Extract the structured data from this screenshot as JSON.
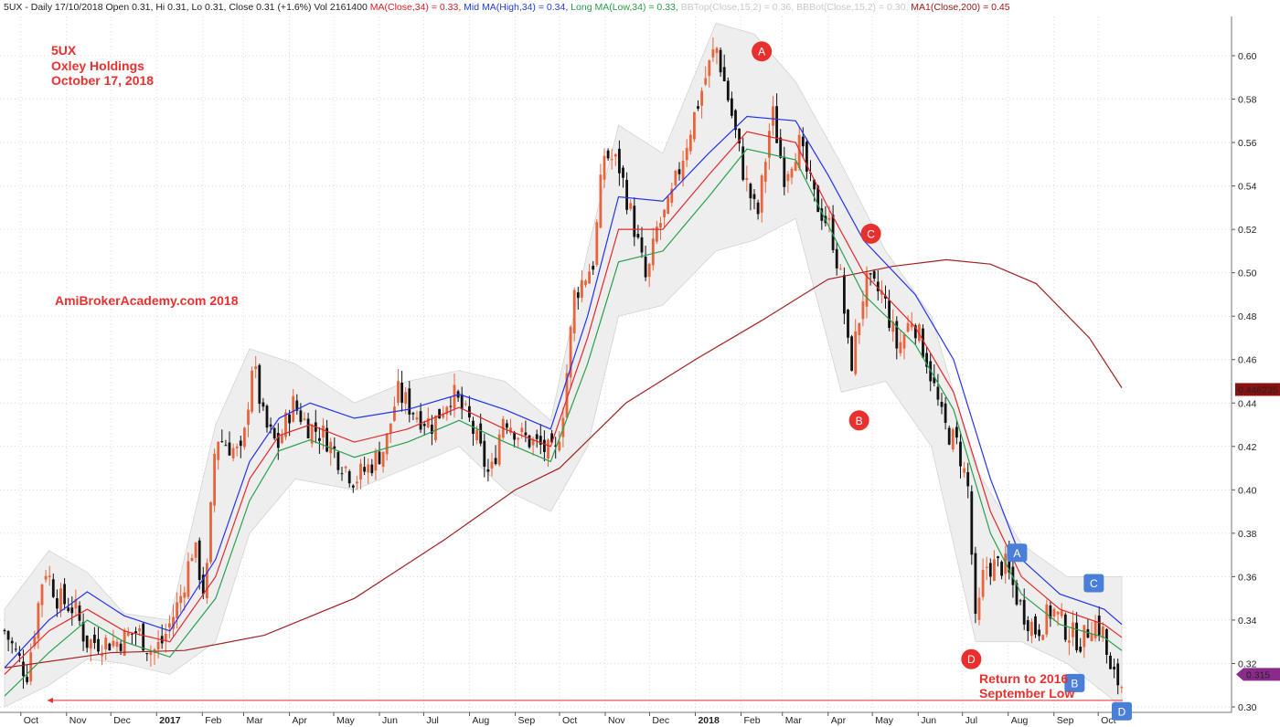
{
  "header": {
    "parts": [
      {
        "text": "5UX - Daily 17/10/2018 Open 0.31, Hi 0.31, Lo 0.31, Close 0.31 (+1.6%) Vol 2161400 ",
        "color": "#222222"
      },
      {
        "text": "MA(Close,34) = 0.33, ",
        "color": "#d42020"
      },
      {
        "text": "Mid MA(High,34) = 0.34, ",
        "color": "#1f3fd0"
      },
      {
        "text": "Long MA(Low,34) = 0.33, ",
        "color": "#2a9a4a"
      },
      {
        "text": "BBTop(Close,15,2) = 0.36, ",
        "color": "#c8c8c8"
      },
      {
        "text": "BBBot(Close,15,2) = 0.30, ",
        "color": "#c8c8c8"
      },
      {
        "text": "MA1(Close,200) = 0.45",
        "color": "#a01818"
      }
    ]
  },
  "annotations": {
    "title_lines": [
      "5UX",
      "Oxley Holdings",
      "October 17, 2018"
    ],
    "watermark": "AmiBrokerAcademy.com  2018",
    "return_lines": [
      "Return to 2016",
      "September Low"
    ]
  },
  "colors": {
    "up_candle": "#e8643c",
    "down_candle": "#111111",
    "ma_close": "#e02a2a",
    "mid_ma_high": "#2233ee",
    "long_ma_low": "#2aa04c",
    "ma200": "#a32020",
    "bb_fill": "#ededed",
    "grid": "#d9d9d9",
    "red_marker": "#e8312f",
    "blue_marker": "#4a7fd8"
  },
  "chart_data": {
    "type": "candlestick",
    "y_range": [
      0.295,
      0.625
    ],
    "y_ticks": [
      "0.30",
      "0.32",
      "0.34",
      "0.36",
      "0.38",
      "0.40",
      "0.42",
      "0.44",
      "0.46",
      "0.48",
      "0.50",
      "0.52",
      "0.54",
      "0.56",
      "0.58",
      "0.60"
    ],
    "x_labels": [
      "Oct",
      "Nov",
      "Dec",
      "2017",
      "Feb",
      "Mar",
      "Apr",
      "May",
      "Jun",
      "Jul",
      "Aug",
      "Sep",
      "Oct",
      "Nov",
      "Dec",
      "2018",
      "Feb",
      "Mar",
      "Apr",
      "May",
      "Jun",
      "Jul",
      "Aug",
      "Sep",
      "Oct"
    ],
    "x_label_bold": [
      "2017",
      "2018"
    ],
    "close_path": [
      [
        "2016-09-20",
        0.335
      ],
      [
        "2016-10-05",
        0.315
      ],
      [
        "2016-10-10",
        0.335
      ],
      [
        "2016-10-17",
        0.365
      ],
      [
        "2016-10-26",
        0.35
      ],
      [
        "2016-11-07",
        0.345
      ],
      [
        "2016-11-14",
        0.33
      ],
      [
        "2016-11-24",
        0.33
      ],
      [
        "2016-12-05",
        0.33
      ],
      [
        "2016-12-19",
        0.335
      ],
      [
        "2016-12-29",
        0.325
      ],
      [
        "2017-01-05",
        0.33
      ],
      [
        "2017-01-17",
        0.35
      ],
      [
        "2017-01-26",
        0.375
      ],
      [
        "2017-02-03",
        0.35
      ],
      [
        "2017-02-10",
        0.425
      ],
      [
        "2017-02-20",
        0.42
      ],
      [
        "2017-02-28",
        0.415
      ],
      [
        "2017-03-07",
        0.46
      ],
      [
        "2017-03-15",
        0.43
      ],
      [
        "2017-03-24",
        0.42
      ],
      [
        "2017-04-03",
        0.44
      ],
      [
        "2017-04-13",
        0.43
      ],
      [
        "2017-04-25",
        0.425
      ],
      [
        "2017-05-04",
        0.415
      ],
      [
        "2017-05-15",
        0.405
      ],
      [
        "2017-05-24",
        0.41
      ],
      [
        "2017-06-05",
        0.42
      ],
      [
        "2017-06-13",
        0.445
      ],
      [
        "2017-06-26",
        0.435
      ],
      [
        "2017-07-07",
        0.43
      ],
      [
        "2017-07-20",
        0.445
      ],
      [
        "2017-08-02",
        0.43
      ],
      [
        "2017-08-15",
        0.405
      ],
      [
        "2017-08-24",
        0.435
      ],
      [
        "2017-09-04",
        0.425
      ],
      [
        "2017-09-18",
        0.42
      ],
      [
        "2017-09-28",
        0.415
      ],
      [
        "2017-10-04",
        0.44
      ],
      [
        "2017-10-11",
        0.49
      ],
      [
        "2017-10-24",
        0.505
      ],
      [
        "2017-10-31",
        0.555
      ],
      [
        "2017-11-10",
        0.55
      ],
      [
        "2017-11-21",
        0.52
      ],
      [
        "2017-11-29",
        0.495
      ],
      [
        "2017-12-06",
        0.52
      ],
      [
        "2017-12-14",
        0.53
      ],
      [
        "2017-12-28",
        0.565
      ],
      [
        "2018-01-08",
        0.59
      ],
      [
        "2018-01-15",
        0.605
      ],
      [
        "2018-01-25",
        0.575
      ],
      [
        "2018-02-03",
        0.545
      ],
      [
        "2018-02-12",
        0.525
      ],
      [
        "2018-02-22",
        0.575
      ],
      [
        "2018-03-02",
        0.545
      ],
      [
        "2018-03-12",
        0.56
      ],
      [
        "2018-03-22",
        0.535
      ],
      [
        "2018-04-03",
        0.52
      ],
      [
        "2018-04-10",
        0.495
      ],
      [
        "2018-04-16",
        0.455
      ],
      [
        "2018-04-26",
        0.495
      ],
      [
        "2018-05-08",
        0.49
      ],
      [
        "2018-05-18",
        0.465
      ],
      [
        "2018-05-28",
        0.48
      ],
      [
        "2018-06-07",
        0.46
      ],
      [
        "2018-06-18",
        0.43
      ],
      [
        "2018-06-28",
        0.42
      ],
      [
        "2018-07-05",
        0.4
      ],
      [
        "2018-07-10",
        0.335
      ],
      [
        "2018-07-16",
        0.365
      ],
      [
        "2018-07-30",
        0.365
      ],
      [
        "2018-08-10",
        0.345
      ],
      [
        "2018-08-20",
        0.335
      ],
      [
        "2018-08-31",
        0.345
      ],
      [
        "2018-09-10",
        0.335
      ],
      [
        "2018-09-20",
        0.33
      ],
      [
        "2018-09-27",
        0.34
      ],
      [
        "2018-10-04",
        0.335
      ],
      [
        "2018-10-09",
        0.315
      ],
      [
        "2018-10-17",
        0.31
      ]
    ],
    "ma_close": [
      [
        "2016-09-20",
        0.315
      ],
      [
        "2016-10-20",
        0.335
      ],
      [
        "2016-11-15",
        0.345
      ],
      [
        "2016-12-10",
        0.335
      ],
      [
        "2017-01-10",
        0.33
      ],
      [
        "2017-02-10",
        0.36
      ],
      [
        "2017-03-05",
        0.405
      ],
      [
        "2017-03-25",
        0.425
      ],
      [
        "2017-04-15",
        0.43
      ],
      [
        "2017-05-15",
        0.422
      ],
      [
        "2017-06-20",
        0.428
      ],
      [
        "2017-07-25",
        0.438
      ],
      [
        "2017-08-25",
        0.428
      ],
      [
        "2017-09-25",
        0.42
      ],
      [
        "2017-10-20",
        0.47
      ],
      [
        "2017-11-10",
        0.52
      ],
      [
        "2017-12-10",
        0.52
      ],
      [
        "2018-01-10",
        0.545
      ],
      [
        "2018-02-05",
        0.565
      ],
      [
        "2018-03-10",
        0.56
      ],
      [
        "2018-04-01",
        0.53
      ],
      [
        "2018-04-25",
        0.5
      ],
      [
        "2018-05-30",
        0.475
      ],
      [
        "2018-06-25",
        0.445
      ],
      [
        "2018-07-20",
        0.39
      ],
      [
        "2018-08-10",
        0.36
      ],
      [
        "2018-09-05",
        0.345
      ],
      [
        "2018-10-05",
        0.338
      ],
      [
        "2018-10-17",
        0.332
      ]
    ],
    "mid_ma_high": [
      [
        "2016-09-20",
        0.318
      ],
      [
        "2016-10-20",
        0.34
      ],
      [
        "2016-11-15",
        0.353
      ],
      [
        "2016-12-10",
        0.342
      ],
      [
        "2017-01-10",
        0.335
      ],
      [
        "2017-02-10",
        0.368
      ],
      [
        "2017-03-05",
        0.413
      ],
      [
        "2017-03-25",
        0.433
      ],
      [
        "2017-04-15",
        0.44
      ],
      [
        "2017-05-15",
        0.433
      ],
      [
        "2017-06-20",
        0.437
      ],
      [
        "2017-07-25",
        0.444
      ],
      [
        "2017-08-25",
        0.437
      ],
      [
        "2017-09-25",
        0.428
      ],
      [
        "2017-10-20",
        0.48
      ],
      [
        "2017-11-10",
        0.535
      ],
      [
        "2017-12-10",
        0.533
      ],
      [
        "2018-01-10",
        0.555
      ],
      [
        "2018-02-05",
        0.572
      ],
      [
        "2018-03-10",
        0.57
      ],
      [
        "2018-04-01",
        0.545
      ],
      [
        "2018-04-25",
        0.515
      ],
      [
        "2018-05-30",
        0.49
      ],
      [
        "2018-06-25",
        0.46
      ],
      [
        "2018-07-20",
        0.405
      ],
      [
        "2018-08-10",
        0.368
      ],
      [
        "2018-09-05",
        0.352
      ],
      [
        "2018-10-05",
        0.345
      ],
      [
        "2018-10-17",
        0.338
      ]
    ],
    "long_ma_low": [
      [
        "2016-09-20",
        0.305
      ],
      [
        "2016-10-20",
        0.325
      ],
      [
        "2016-11-15",
        0.34
      ],
      [
        "2016-12-10",
        0.33
      ],
      [
        "2017-01-10",
        0.323
      ],
      [
        "2017-02-10",
        0.35
      ],
      [
        "2017-03-05",
        0.395
      ],
      [
        "2017-03-25",
        0.418
      ],
      [
        "2017-04-15",
        0.423
      ],
      [
        "2017-05-15",
        0.415
      ],
      [
        "2017-06-20",
        0.422
      ],
      [
        "2017-07-25",
        0.432
      ],
      [
        "2017-08-25",
        0.422
      ],
      [
        "2017-09-25",
        0.413
      ],
      [
        "2017-10-20",
        0.458
      ],
      [
        "2017-11-10",
        0.505
      ],
      [
        "2017-12-10",
        0.51
      ],
      [
        "2018-01-10",
        0.535
      ],
      [
        "2018-02-05",
        0.557
      ],
      [
        "2018-03-10",
        0.552
      ],
      [
        "2018-04-01",
        0.522
      ],
      [
        "2018-04-25",
        0.49
      ],
      [
        "2018-05-30",
        0.467
      ],
      [
        "2018-06-25",
        0.437
      ],
      [
        "2018-07-20",
        0.38
      ],
      [
        "2018-08-10",
        0.352
      ],
      [
        "2018-09-05",
        0.338
      ],
      [
        "2018-10-05",
        0.332
      ],
      [
        "2018-10-17",
        0.326
      ]
    ],
    "ma200": [
      [
        "2016-09-20",
        0.318
      ],
      [
        "2016-12-01",
        0.325
      ],
      [
        "2017-01-20",
        0.326
      ],
      [
        "2017-03-15",
        0.333
      ],
      [
        "2017-05-15",
        0.35
      ],
      [
        "2017-07-15",
        0.377
      ],
      [
        "2017-09-01",
        0.4
      ],
      [
        "2017-10-01",
        0.41
      ],
      [
        "2017-11-15",
        0.44
      ],
      [
        "2018-01-01",
        0.46
      ],
      [
        "2018-02-15",
        0.478
      ],
      [
        "2018-04-01",
        0.497
      ],
      [
        "2018-05-15",
        0.503
      ],
      [
        "2018-06-20",
        0.506
      ],
      [
        "2018-07-20",
        0.504
      ],
      [
        "2018-08-20",
        0.495
      ],
      [
        "2018-09-25",
        0.47
      ],
      [
        "2018-10-17",
        0.447
      ]
    ],
    "bb_top": [
      [
        "2016-09-20",
        0.345
      ],
      [
        "2016-10-20",
        0.372
      ],
      [
        "2016-11-15",
        0.362
      ],
      [
        "2016-12-10",
        0.343
      ],
      [
        "2017-01-10",
        0.34
      ],
      [
        "2017-02-10",
        0.43
      ],
      [
        "2017-03-05",
        0.465
      ],
      [
        "2017-04-05",
        0.458
      ],
      [
        "2017-05-15",
        0.44
      ],
      [
        "2017-06-20",
        0.45
      ],
      [
        "2017-07-25",
        0.455
      ],
      [
        "2017-08-25",
        0.45
      ],
      [
        "2017-09-25",
        0.432
      ],
      [
        "2017-10-20",
        0.51
      ],
      [
        "2017-11-10",
        0.568
      ],
      [
        "2017-12-10",
        0.555
      ],
      [
        "2018-01-15",
        0.615
      ],
      [
        "2018-02-10",
        0.61
      ],
      [
        "2018-03-10",
        0.588
      ],
      [
        "2018-04-10",
        0.55
      ],
      [
        "2018-05-10",
        0.51
      ],
      [
        "2018-06-10",
        0.48
      ],
      [
        "2018-07-10",
        0.41
      ],
      [
        "2018-08-10",
        0.375
      ],
      [
        "2018-09-10",
        0.36
      ],
      [
        "2018-10-17",
        0.36
      ]
    ],
    "bb_bot": [
      [
        "2016-09-20",
        0.3
      ],
      [
        "2016-10-20",
        0.31
      ],
      [
        "2016-11-15",
        0.322
      ],
      [
        "2016-12-10",
        0.32
      ],
      [
        "2017-01-10",
        0.315
      ],
      [
        "2017-02-10",
        0.33
      ],
      [
        "2017-03-05",
        0.38
      ],
      [
        "2017-04-05",
        0.405
      ],
      [
        "2017-05-15",
        0.4
      ],
      [
        "2017-06-20",
        0.41
      ],
      [
        "2017-07-25",
        0.42
      ],
      [
        "2017-08-25",
        0.4
      ],
      [
        "2017-09-25",
        0.39
      ],
      [
        "2017-10-20",
        0.42
      ],
      [
        "2017-11-10",
        0.48
      ],
      [
        "2017-12-10",
        0.485
      ],
      [
        "2018-01-15",
        0.51
      ],
      [
        "2018-02-10",
        0.515
      ],
      [
        "2018-03-10",
        0.525
      ],
      [
        "2018-04-10",
        0.445
      ],
      [
        "2018-05-10",
        0.45
      ],
      [
        "2018-06-10",
        0.42
      ],
      [
        "2018-07-10",
        0.33
      ],
      [
        "2018-08-10",
        0.33
      ],
      [
        "2018-09-10",
        0.32
      ],
      [
        "2018-10-17",
        0.3
      ]
    ],
    "last_ma200_label": "0.446235",
    "last_price_label": "0.315",
    "september_low": 0.303,
    "markers": [
      {
        "label": "A",
        "date": "2018-02-15",
        "value": 0.602,
        "style": "red"
      },
      {
        "label": "B",
        "date": "2018-04-22",
        "value": 0.432,
        "style": "red"
      },
      {
        "label": "C",
        "date": "2018-04-30",
        "value": 0.518,
        "style": "red"
      },
      {
        "label": "D",
        "date": "2018-07-07",
        "value": 0.322,
        "style": "red"
      },
      {
        "label": "A",
        "date": "2018-08-07",
        "value": 0.371,
        "style": "blue"
      },
      {
        "label": "B",
        "date": "2018-09-15",
        "value": 0.311,
        "style": "blue"
      },
      {
        "label": "C",
        "date": "2018-09-28",
        "value": 0.357,
        "style": "blue"
      },
      {
        "label": "D",
        "date": "2018-10-17",
        "value": 0.298,
        "style": "blue"
      }
    ]
  }
}
